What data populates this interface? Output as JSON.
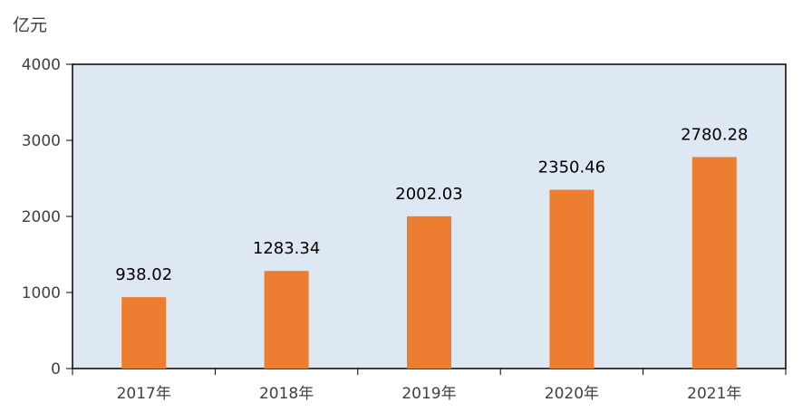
{
  "chart_data": {
    "type": "bar",
    "title": "",
    "ylabel": "亿元",
    "xlabel": "",
    "categories": [
      "2017年",
      "2018年",
      "2019年",
      "2020年",
      "2021年"
    ],
    "values": [
      938.02,
      1283.34,
      2002.03,
      2350.46,
      2780.28
    ],
    "data_labels": [
      "938.02",
      "1283.34",
      "2002.03",
      "2350.46",
      "2780.28"
    ],
    "ylim": [
      0,
      4000
    ],
    "yticks": [
      0,
      1000,
      2000,
      3000,
      4000
    ],
    "ytick_labels": [
      "0",
      "1000",
      "2000",
      "3000",
      "4000"
    ],
    "grid": false,
    "legend": "none",
    "colors": {
      "bar": "#ED7D31",
      "plot_background": "#DEE8F3",
      "axis": "#000000"
    }
  }
}
